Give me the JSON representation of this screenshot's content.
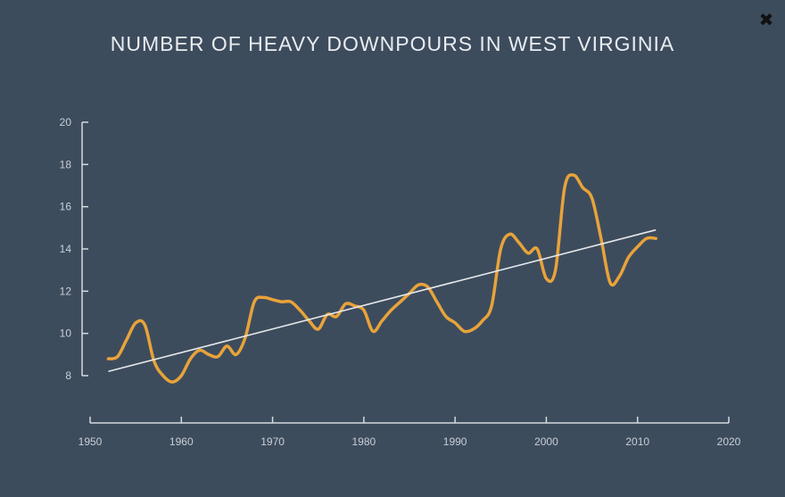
{
  "close_icon": "close-icon",
  "chart_data": {
    "type": "line",
    "title": "NUMBER OF HEAVY DOWNPOURS IN WEST VIRGINIA",
    "xlabel": "",
    "ylabel": "",
    "xlim": [
      1950,
      2020
    ],
    "ylim": [
      8,
      20
    ],
    "xticks": [
      1950,
      1960,
      1970,
      1980,
      1990,
      2000,
      2010,
      2020
    ],
    "yticks": [
      8,
      10,
      12,
      14,
      16,
      18,
      20
    ],
    "grid": false,
    "colors": {
      "series": "#e8a33a",
      "trend": "#e6e9ec",
      "axis": "#d5dade",
      "background": "#3d4c5d"
    },
    "series": [
      {
        "x": [
          1952,
          1953,
          1954,
          1955,
          1956,
          1957,
          1958,
          1959,
          1960,
          1961,
          1962,
          1963,
          1964,
          1965,
          1966,
          1967,
          1968,
          1969,
          1970,
          1971,
          1972,
          1973,
          1974,
          1975,
          1976,
          1977,
          1978,
          1979,
          1980,
          1981,
          1982,
          1983,
          1984,
          1985,
          1986,
          1987,
          1988,
          1989,
          1990,
          1991,
          1992,
          1993,
          1994,
          1995,
          1996,
          1997,
          1998,
          1999,
          2000,
          2001,
          2002,
          2003,
          2004,
          2005,
          2006,
          2007,
          2008,
          2009,
          2010,
          2011,
          2012
        ],
        "values": [
          8.8,
          8.9,
          9.7,
          10.5,
          10.4,
          8.7,
          8.0,
          7.7,
          8.0,
          8.8,
          9.2,
          9.0,
          8.9,
          9.4,
          9.0,
          9.8,
          11.5,
          11.7,
          11.6,
          11.5,
          11.5,
          11.1,
          10.6,
          10.2,
          10.9,
          10.8,
          11.4,
          11.3,
          11.1,
          10.1,
          10.6,
          11.1,
          11.5,
          11.9,
          12.3,
          12.2,
          11.5,
          10.8,
          10.5,
          10.1,
          10.2,
          10.6,
          11.3,
          14.0,
          14.7,
          14.3,
          13.8,
          14.0,
          12.6,
          13.0,
          16.9,
          17.5,
          16.9,
          16.4,
          14.5,
          12.4,
          12.7,
          13.6,
          14.1,
          14.5,
          14.5
        ]
      },
      {
        "x": [
          1952,
          2012
        ],
        "values": [
          8.2,
          14.9
        ]
      }
    ]
  }
}
